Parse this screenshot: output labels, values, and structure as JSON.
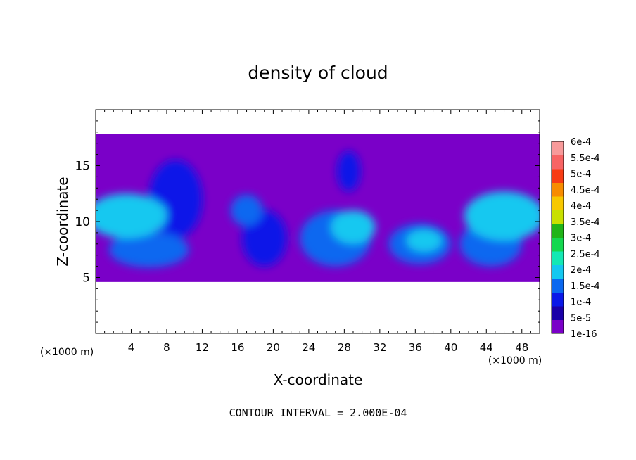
{
  "chart_data": {
    "type": "heatmap",
    "title": "density of cloud",
    "xlabel": "X-coordinate",
    "ylabel": "Z-coordinate",
    "x_unit": "(×1000 m)",
    "x_unit_right": "(×1000 m)",
    "xlim": [
      0,
      50
    ],
    "ylim": [
      0,
      20
    ],
    "x_ticks": [
      4,
      8,
      12,
      16,
      20,
      24,
      28,
      32,
      36,
      40,
      44,
      48
    ],
    "y_ticks": [
      5,
      10,
      15
    ],
    "footer": "CONTOUR INTERVAL = 2.000E-04",
    "colorbar": {
      "labels": [
        "1e-16",
        "5e-5",
        "1e-4",
        "1.5e-4",
        "2e-4",
        "2.5e-4",
        "3e-4",
        "3.5e-4",
        "4e-4",
        "4.5e-4",
        "5e-4",
        "5.5e-4",
        "6e-4"
      ],
      "colors": [
        "#7a00c8",
        "#1a00a8",
        "#0a18e8",
        "#0a68f0",
        "#14c8f0",
        "#14e8b4",
        "#14d850",
        "#20b418",
        "#c8e000",
        "#f8c800",
        "#f88c00",
        "#f83c14",
        "#f86464",
        "#f89a9a"
      ]
    },
    "cloud_layer_z": [
      4.6,
      17.8
    ],
    "cloud_features": [
      {
        "x": 3.5,
        "z": 10.5,
        "rx": 4.5,
        "rz": 2.0,
        "level": 4
      },
      {
        "x": 5.0,
        "z": 10.8,
        "rx": 3.0,
        "rz": 1.2,
        "level": 4
      },
      {
        "x": 6.0,
        "z": 7.5,
        "rx": 4.5,
        "rz": 1.6,
        "level": 3
      },
      {
        "x": 9.0,
        "z": 12.0,
        "rx": 3.0,
        "rz": 3.5,
        "level": 2
      },
      {
        "x": 17.0,
        "z": 11.0,
        "rx": 1.8,
        "rz": 1.4,
        "level": 3
      },
      {
        "x": 19.0,
        "z": 8.5,
        "rx": 2.5,
        "rz": 2.5,
        "level": 2
      },
      {
        "x": 27.0,
        "z": 8.5,
        "rx": 4.0,
        "rz": 2.5,
        "level": 3
      },
      {
        "x": 29.0,
        "z": 9.5,
        "rx": 2.5,
        "rz": 1.5,
        "level": 4
      },
      {
        "x": 28.5,
        "z": 14.5,
        "rx": 1.3,
        "rz": 1.8,
        "level": 2
      },
      {
        "x": 36.5,
        "z": 8.0,
        "rx": 3.5,
        "rz": 1.8,
        "level": 3
      },
      {
        "x": 37.0,
        "z": 8.3,
        "rx": 2.0,
        "rz": 1.0,
        "level": 4
      },
      {
        "x": 46.0,
        "z": 10.5,
        "rx": 4.5,
        "rz": 2.2,
        "level": 4
      },
      {
        "x": 44.5,
        "z": 8.0,
        "rx": 3.5,
        "rz": 2.0,
        "level": 3
      }
    ]
  }
}
